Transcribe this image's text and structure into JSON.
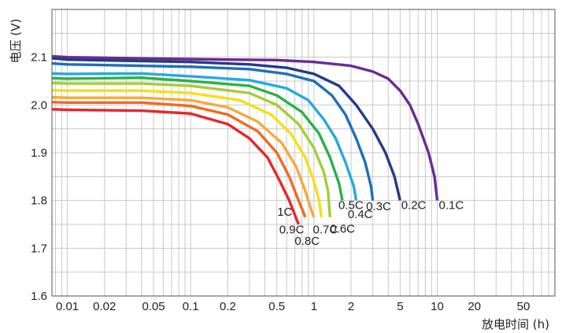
{
  "chart_data": {
    "type": "line",
    "title": "",
    "xlabel": "放电时间 (h)",
    "ylabel": "电压 (V)",
    "x_scale": "log",
    "xlim": [
      0.0075,
      90
    ],
    "ylim": [
      1.6,
      2.2
    ],
    "grid": true,
    "x_ticks": [
      0.01,
      0.02,
      0.05,
      0.1,
      0.2,
      0.5,
      1,
      2,
      5,
      10,
      20,
      50
    ],
    "x_tick_labels": [
      "0.01",
      "0.02",
      "0.05",
      "0.1",
      "0.2",
      "0.5",
      "1",
      "2",
      "5",
      "10",
      "20",
      "50"
    ],
    "y_ticks": [
      1.6,
      1.7,
      1.8,
      1.9,
      2.0,
      2.1
    ],
    "y_tick_labels": [
      "1.6",
      "1.7",
      "1.8",
      "1.9",
      "2.0",
      "2.1"
    ],
    "series": [
      {
        "name": "0.1C",
        "color": "#6a2c91",
        "points": [
          [
            0.0075,
            2.102
          ],
          [
            0.01,
            2.1
          ],
          [
            0.05,
            2.097
          ],
          [
            0.2,
            2.095
          ],
          [
            0.5,
            2.094
          ],
          [
            1,
            2.09
          ],
          [
            2,
            2.082
          ],
          [
            3,
            2.07
          ],
          [
            4,
            2.055
          ],
          [
            5,
            2.03
          ],
          [
            6,
            2.0
          ],
          [
            7,
            1.96
          ],
          [
            8.5,
            1.9
          ],
          [
            9.5,
            1.85
          ],
          [
            10,
            1.8
          ]
        ]
      },
      {
        "name": "0.2C",
        "color": "#253a87",
        "points": [
          [
            0.0075,
            2.098
          ],
          [
            0.01,
            2.095
          ],
          [
            0.1,
            2.09
          ],
          [
            0.3,
            2.085
          ],
          [
            0.6,
            2.078
          ],
          [
            1,
            2.065
          ],
          [
            1.6,
            2.04
          ],
          [
            2.2,
            2.0
          ],
          [
            3,
            1.95
          ],
          [
            3.8,
            1.9
          ],
          [
            4.5,
            1.85
          ],
          [
            5,
            1.8
          ]
        ]
      },
      {
        "name": "0.3C",
        "color": "#1e6fb8",
        "points": [
          [
            0.0075,
            2.087
          ],
          [
            0.01,
            2.085
          ],
          [
            0.1,
            2.08
          ],
          [
            0.3,
            2.075
          ],
          [
            0.6,
            2.065
          ],
          [
            1,
            2.05
          ],
          [
            1.4,
            2.02
          ],
          [
            1.8,
            1.98
          ],
          [
            2.2,
            1.93
          ],
          [
            2.6,
            1.88
          ],
          [
            2.9,
            1.83
          ],
          [
            3,
            1.8
          ]
        ]
      },
      {
        "name": "0.4C",
        "color": "#27a8e0",
        "points": [
          [
            0.0075,
            2.066
          ],
          [
            0.01,
            2.065
          ],
          [
            0.04,
            2.066
          ],
          [
            0.1,
            2.06
          ],
          [
            0.3,
            2.052
          ],
          [
            0.6,
            2.035
          ],
          [
            0.9,
            2.01
          ],
          [
            1.2,
            1.97
          ],
          [
            1.5,
            1.93
          ],
          [
            1.8,
            1.88
          ],
          [
            2.1,
            1.83
          ],
          [
            2.2,
            1.8
          ]
        ]
      },
      {
        "name": "0.5C",
        "color": "#2bb04a",
        "points": [
          [
            0.0075,
            2.056
          ],
          [
            0.01,
            2.055
          ],
          [
            0.04,
            2.057
          ],
          [
            0.1,
            2.05
          ],
          [
            0.3,
            2.04
          ],
          [
            0.5,
            2.02
          ],
          [
            0.8,
            1.985
          ],
          [
            1.1,
            1.94
          ],
          [
            1.35,
            1.89
          ],
          [
            1.6,
            1.835
          ],
          [
            1.7,
            1.8
          ]
        ]
      },
      {
        "name": "0.6C",
        "color": "#a6cc39",
        "points": [
          [
            0.0075,
            2.046
          ],
          [
            0.01,
            2.045
          ],
          [
            0.04,
            2.045
          ],
          [
            0.1,
            2.04
          ],
          [
            0.3,
            2.025
          ],
          [
            0.5,
            2.0
          ],
          [
            0.75,
            1.96
          ],
          [
            1.0,
            1.91
          ],
          [
            1.2,
            1.86
          ],
          [
            1.3,
            1.82
          ],
          [
            1.35,
            1.765
          ]
        ]
      },
      {
        "name": "0.7C",
        "color": "#f4df1a",
        "points": [
          [
            0.0075,
            2.031
          ],
          [
            0.01,
            2.03
          ],
          [
            0.04,
            2.03
          ],
          [
            0.1,
            2.025
          ],
          [
            0.25,
            2.01
          ],
          [
            0.45,
            1.98
          ],
          [
            0.65,
            1.94
          ],
          [
            0.85,
            1.89
          ],
          [
            1.0,
            1.84
          ],
          [
            1.1,
            1.8
          ],
          [
            1.15,
            1.765
          ]
        ]
      },
      {
        "name": "0.8C",
        "color": "#f6a93b",
        "points": [
          [
            0.0075,
            2.016
          ],
          [
            0.01,
            2.015
          ],
          [
            0.04,
            2.015
          ],
          [
            0.1,
            2.01
          ],
          [
            0.2,
            1.995
          ],
          [
            0.35,
            1.965
          ],
          [
            0.55,
            1.92
          ],
          [
            0.72,
            1.87
          ],
          [
            0.85,
            1.82
          ],
          [
            0.95,
            1.78
          ],
          [
            1.0,
            1.765
          ]
        ]
      },
      {
        "name": "0.9C",
        "color": "#f06a1f",
        "points": [
          [
            0.0075,
            2.006
          ],
          [
            0.01,
            2.005
          ],
          [
            0.04,
            2.005
          ],
          [
            0.1,
            1.998
          ],
          [
            0.2,
            1.98
          ],
          [
            0.35,
            1.945
          ],
          [
            0.5,
            1.9
          ],
          [
            0.63,
            1.85
          ],
          [
            0.75,
            1.8
          ],
          [
            0.85,
            1.765
          ]
        ]
      },
      {
        "name": "1C",
        "color": "#e8262a",
        "points": [
          [
            0.0075,
            1.991
          ],
          [
            0.01,
            1.99
          ],
          [
            0.04,
            1.988
          ],
          [
            0.1,
            1.982
          ],
          [
            0.2,
            1.96
          ],
          [
            0.3,
            1.93
          ],
          [
            0.42,
            1.89
          ],
          [
            0.53,
            1.84
          ],
          [
            0.63,
            1.8
          ],
          [
            0.75,
            1.75
          ]
        ]
      }
    ],
    "annotations": [
      {
        "text": "0.1C",
        "x": 10.3,
        "y": 1.782,
        "anchor": "start"
      },
      {
        "text": "0.2C",
        "x": 5.1,
        "y": 1.782,
        "anchor": "start"
      },
      {
        "text": "0.3C",
        "x": 2.65,
        "y": 1.78,
        "anchor": "start"
      },
      {
        "text": "0.5C",
        "x": 1.58,
        "y": 1.782,
        "anchor": "start"
      },
      {
        "text": "0.4C",
        "x": 1.88,
        "y": 1.763,
        "anchor": "start"
      },
      {
        "text": "0.6C",
        "x": 1.35,
        "y": 1.733,
        "anchor": "start"
      },
      {
        "text": "0.7C",
        "x": 0.98,
        "y": 1.731,
        "anchor": "start"
      },
      {
        "text": "0.8C",
        "x": 0.88,
        "y": 1.707,
        "anchor": "middle"
      },
      {
        "text": "0.9C",
        "x": 0.66,
        "y": 1.731,
        "anchor": "middle"
      },
      {
        "text": "1C",
        "x": 0.58,
        "y": 1.768,
        "anchor": "middle"
      }
    ]
  }
}
